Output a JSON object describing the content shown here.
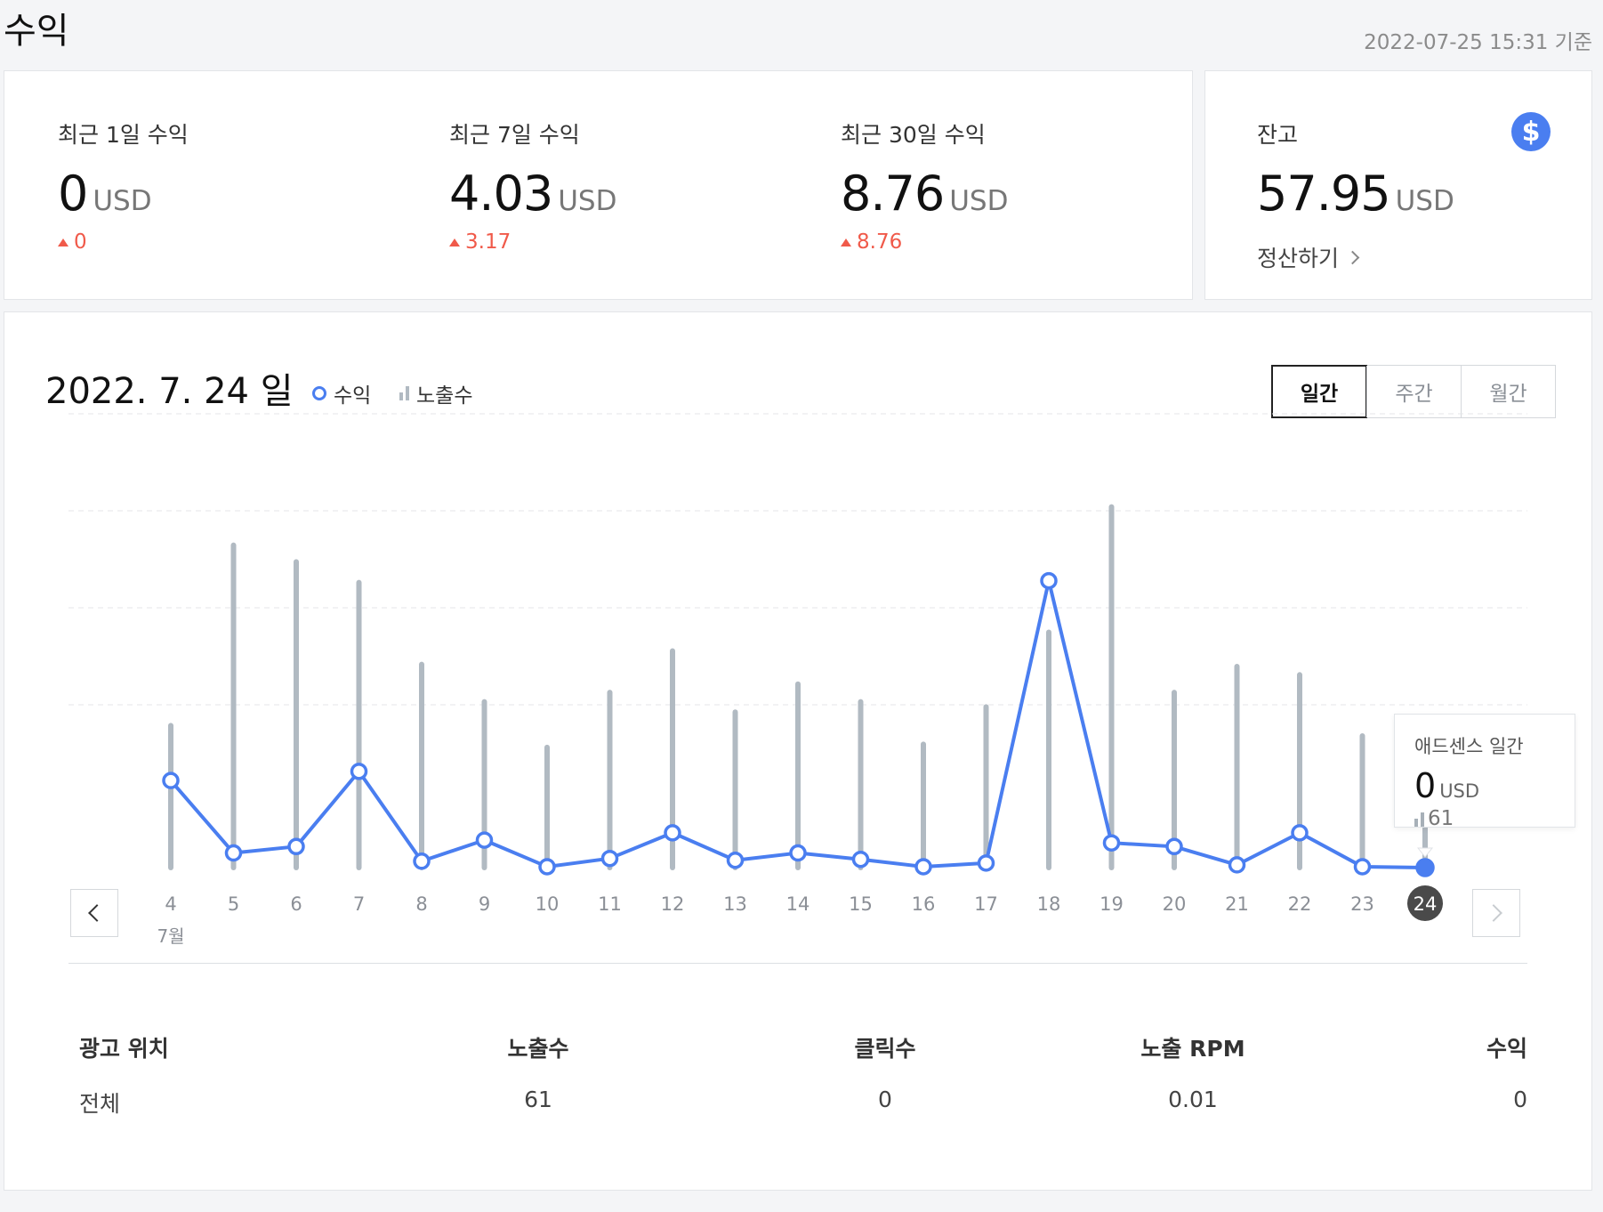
{
  "page": {
    "title": "수익",
    "timestamp": "2022-07-25 15:31 기준"
  },
  "stats": [
    {
      "label": "최근 1일 수익",
      "value": "0",
      "unit": "USD",
      "change": "0"
    },
    {
      "label": "최근 7일 수익",
      "value": "4.03",
      "unit": "USD",
      "change": "3.17"
    },
    {
      "label": "최근 30일 수익",
      "value": "8.76",
      "unit": "USD",
      "change": "8.76"
    }
  ],
  "balance": {
    "label": "잔고",
    "value": "57.95",
    "unit": "USD",
    "settle_label": "정산하기",
    "icon": "dollar-icon"
  },
  "chart_header": {
    "date": "2022. 7. 24 일",
    "legend_revenue": "수익",
    "legend_impressions": "노출수",
    "period_tabs": [
      "일간",
      "주간",
      "월간"
    ],
    "active_period": "일간"
  },
  "colors": {
    "revenue_line": "#4a7ef0",
    "impression_bar": "#b1bac2",
    "increase": "#f05a4a"
  },
  "chart_data": {
    "type": "bar",
    "categories": [
      "4",
      "5",
      "6",
      "7",
      "8",
      "9",
      "10",
      "11",
      "12",
      "13",
      "14",
      "15",
      "16",
      "17",
      "18",
      "19",
      "20",
      "21",
      "22",
      "23",
      "24"
    ],
    "month_label": "7월",
    "selected_category": "24",
    "series": [
      {
        "name": "노출수",
        "type": "bar",
        "values": [
          137,
          311,
          295,
          275,
          196,
          160,
          116,
          169,
          209,
          150,
          177,
          160,
          119,
          155,
          227,
          348,
          169,
          194,
          186,
          127,
          61
        ]
      },
      {
        "name": "수익",
        "type": "line",
        "values": [
          0.095,
          0.016,
          0.023,
          0.105,
          0.007,
          0.03,
          0.001,
          0.01,
          0.038,
          0.008,
          0.016,
          0.009,
          0.001,
          0.005,
          0.313,
          0.027,
          0.023,
          0.003,
          0.038,
          0.001,
          0.0
        ]
      }
    ]
  },
  "tooltip": {
    "title": "애드센스 일간",
    "value": "0",
    "unit": "USD",
    "impressions": "61"
  },
  "table": {
    "headers": [
      "광고 위치",
      "노출수",
      "클릭수",
      "노출 RPM",
      "수익"
    ],
    "rows": [
      [
        "전체",
        "61",
        "0",
        "0.01",
        "0"
      ]
    ]
  }
}
